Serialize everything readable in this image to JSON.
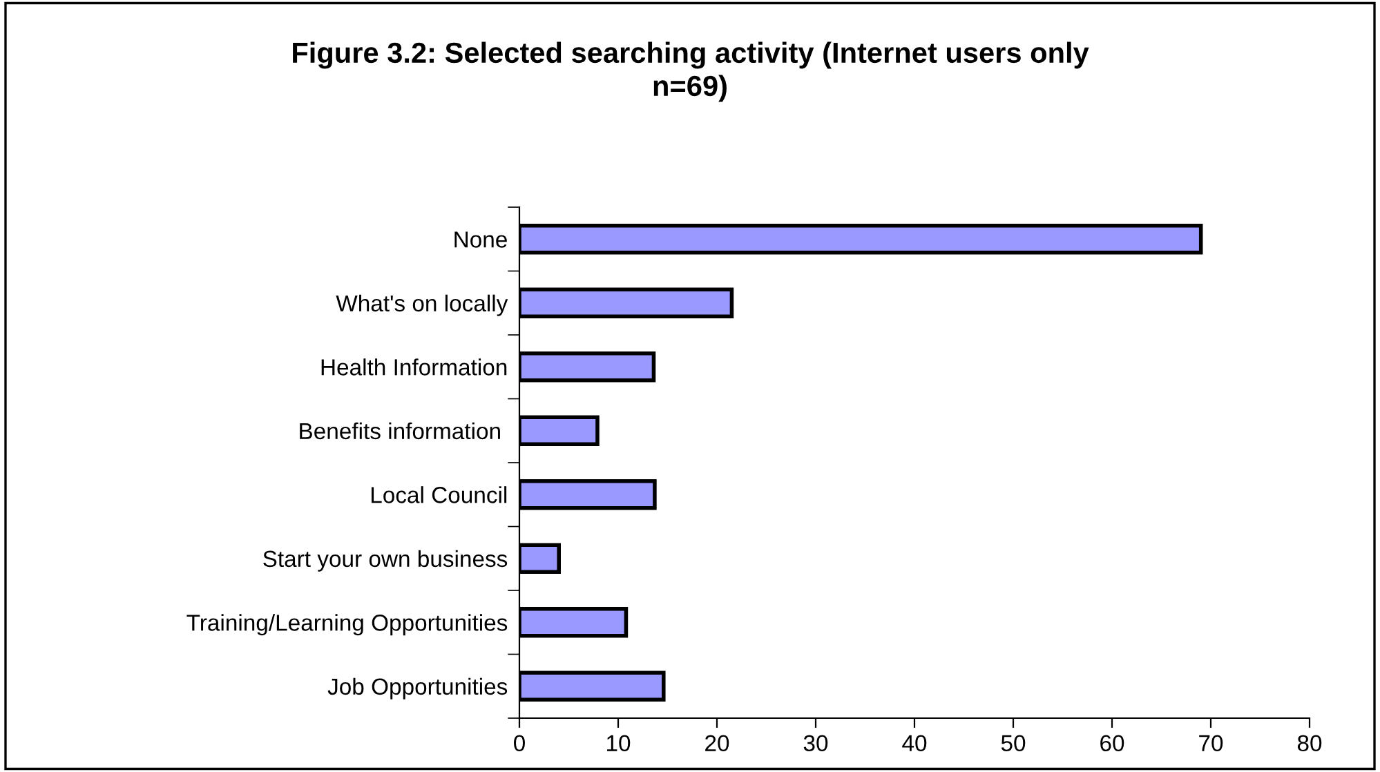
{
  "chart_data": {
    "type": "bar",
    "orientation": "horizontal",
    "title": "Figure 3.2: Selected searching activity (Internet users only\nn=69)",
    "categories": [
      "None",
      "What's on locally",
      "Health Information",
      "Benefits information ",
      "Local Council",
      "Start your own business",
      "Training/Learning Opportunities",
      "Job Opportunities"
    ],
    "values": [
      69,
      21.5,
      13.6,
      7.9,
      13.7,
      4,
      10.8,
      14.6
    ],
    "color": "#9999ff",
    "xlim": [
      0,
      80
    ],
    "xticks": [
      0,
      10,
      20,
      30,
      40,
      50,
      60,
      70,
      80
    ],
    "grid": false,
    "legend": false
  }
}
